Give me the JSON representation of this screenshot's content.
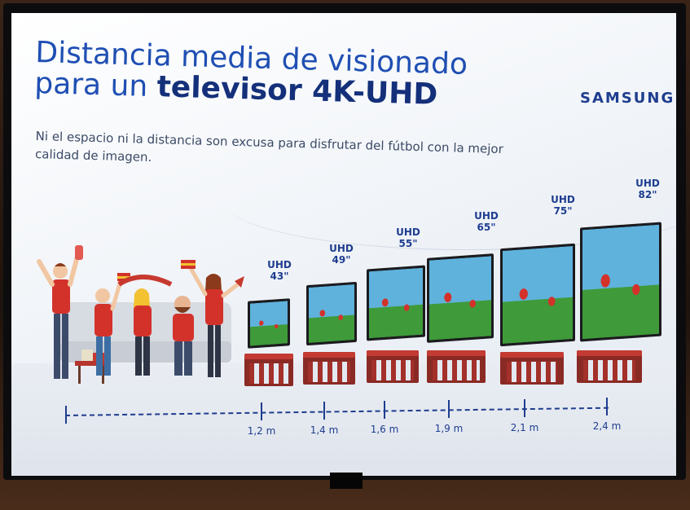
{
  "slide": {
    "title_line1": "Distancia media de visionado",
    "title_line2_prefix": "para un ",
    "title_line2_bold": "televisor 4K-UHD",
    "subtitle": "Ni el espacio ni la distancia son excusa para disfrutar del fútbol con la mejor calidad de imagen.",
    "brand": "SAMSUNG"
  },
  "tvs": [
    {
      "label": "UHD",
      "size": "43\"",
      "distance": "1,2 m"
    },
    {
      "label": "UHD",
      "size": "49\"",
      "distance": "1,4 m"
    },
    {
      "label": "UHD",
      "size": "55\"",
      "distance": "1,6 m"
    },
    {
      "label": "UHD",
      "size": "65\"",
      "distance": "1,9 m"
    },
    {
      "label": "UHD",
      "size": "75\"",
      "distance": "2,1 m"
    },
    {
      "label": "UHD",
      "size": "82\"",
      "distance": "2,4 m"
    }
  ],
  "colors": {
    "title_blue": "#1f4fb3",
    "brand_blue": "#1e3d8f",
    "stand_red": "#c33b33",
    "pitch_green": "#3f9a3a",
    "sky_blue": "#5fb2dc"
  }
}
